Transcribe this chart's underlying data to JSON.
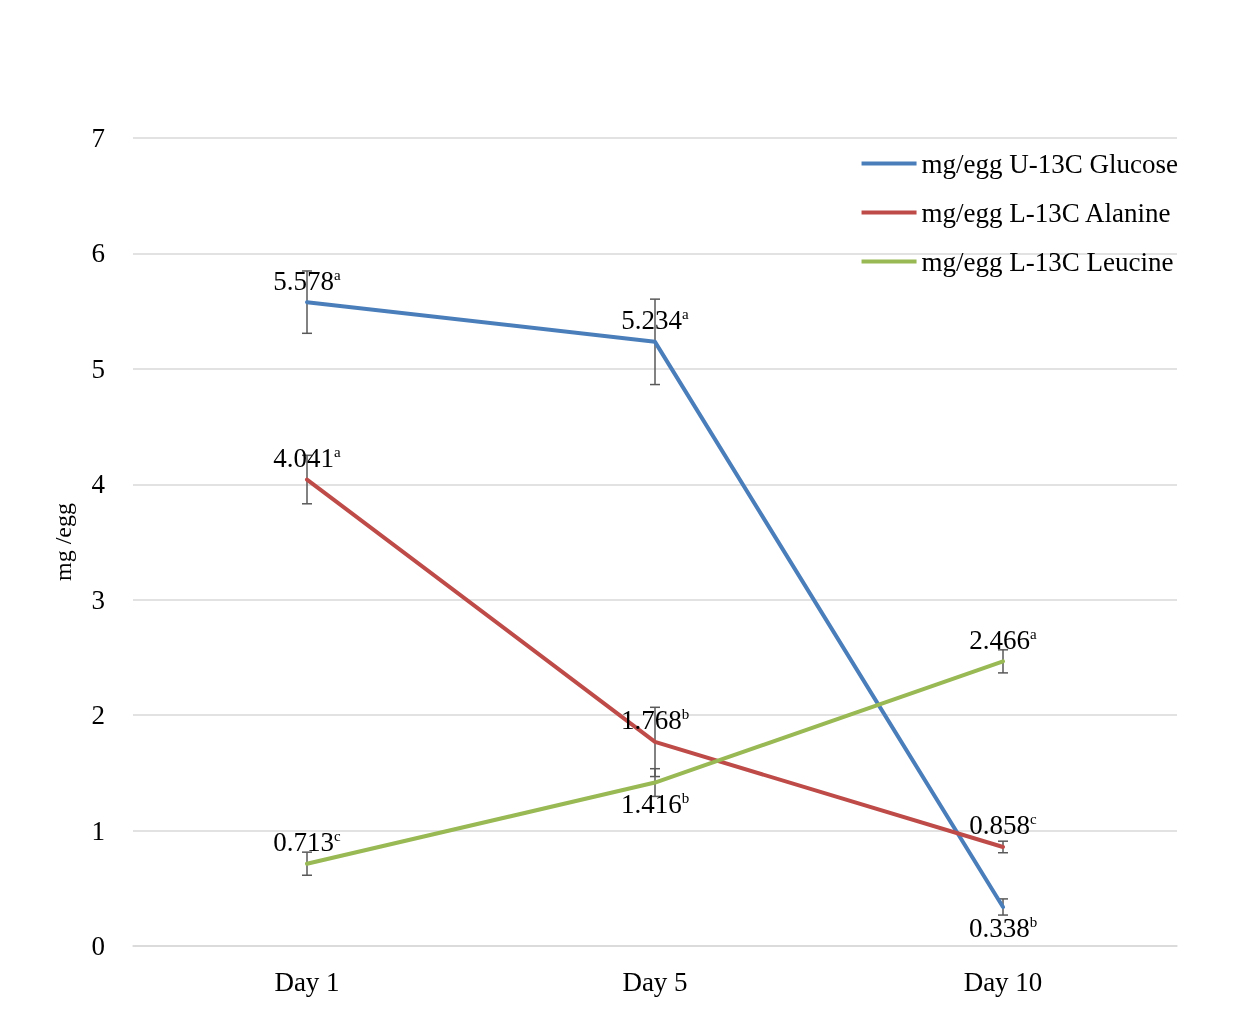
{
  "chart_data": {
    "type": "line",
    "ylabel": "mg /egg",
    "categories": [
      "Day 1",
      "Day 5",
      "Day 10"
    ],
    "series": [
      {
        "name": "mg/egg U-13C Glucose",
        "color": "#4a7ebb",
        "values": [
          5.578,
          5.234,
          0.338
        ],
        "errors": [
          0.27,
          0.37,
          0.07
        ],
        "value_labels": [
          "5.578$^{a}$",
          "5.234$^{a}$",
          "0.338$^{b}$"
        ]
      },
      {
        "name": "mg/egg L-13C Alanine",
        "color": "#be4b48",
        "values": [
          4.041,
          1.768,
          0.858
        ],
        "errors": [
          0.21,
          0.3,
          0.05
        ],
        "value_labels": [
          "4.041$^{a}$",
          "1.768$^{b}$",
          "0.858$^{c}$"
        ]
      },
      {
        "name": "mg/egg L-13C Leucine",
        "color": "#98b954",
        "values": [
          0.713,
          1.416,
          2.466
        ],
        "errors": [
          0.1,
          0.12,
          0.1
        ],
        "value_labels": [
          "0.713$^{c}$",
          "1.416$^{b}$",
          "2.466$^{a}$"
        ]
      }
    ],
    "ylim": [
      0,
      7
    ],
    "yticks": [
      0,
      1,
      2,
      3,
      4,
      5,
      6,
      7
    ],
    "grid": "y",
    "legend": "top right",
    "marker": "none",
    "line_style": "solid"
  }
}
